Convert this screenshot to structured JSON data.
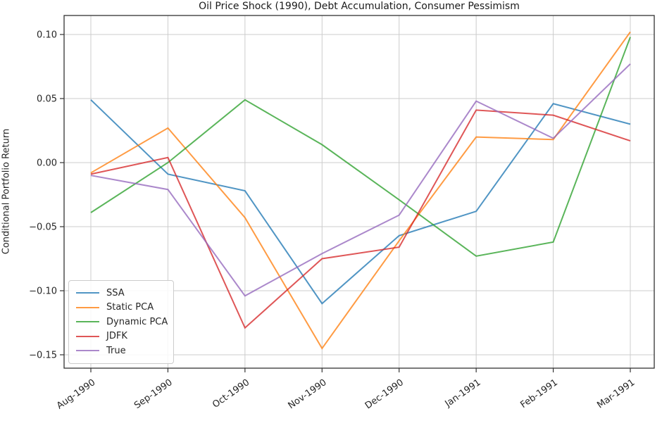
{
  "chart_data": {
    "type": "line",
    "title": "Oil Price Shock (1990), Debt Accumulation, Consumer Pessimism",
    "xlabel": "",
    "ylabel": "Conditional Portfolio Return",
    "categories": [
      "Aug-1990",
      "Sep-1990",
      "Oct-1990",
      "Nov-1990",
      "Dec-1990",
      "Jan-1991",
      "Feb-1991",
      "Mar-1991"
    ],
    "series": [
      {
        "name": "SSA",
        "color": "#1f77b4",
        "values": [
          0.049,
          -0.009,
          -0.022,
          -0.11,
          -0.057,
          -0.038,
          0.046,
          0.03
        ]
      },
      {
        "name": "Static PCA",
        "color": "#ff7f0e",
        "values": [
          -0.008,
          0.027,
          -0.043,
          -0.145,
          -0.061,
          0.02,
          0.018,
          0.102
        ]
      },
      {
        "name": "Dynamic PCA",
        "color": "#2ca02c",
        "values": [
          -0.039,
          0.0,
          0.049,
          0.014,
          -0.029,
          -0.073,
          -0.062,
          0.098
        ]
      },
      {
        "name": "JDFK",
        "color": "#d62728",
        "values": [
          -0.009,
          0.004,
          -0.129,
          -0.075,
          -0.066,
          0.041,
          0.037,
          0.017
        ]
      },
      {
        "name": "True",
        "color": "#9467bd",
        "values": [
          -0.01,
          -0.021,
          -0.104,
          -0.071,
          -0.041,
          0.048,
          0.019,
          0.077
        ]
      }
    ],
    "yticks": [
      {
        "value": 0.1,
        "label": "0.10"
      },
      {
        "value": 0.05,
        "label": "0.05"
      },
      {
        "value": 0.0,
        "label": "0.00"
      },
      {
        "value": -0.05,
        "label": "−0.05"
      },
      {
        "value": -0.1,
        "label": "−0.10"
      },
      {
        "value": -0.15,
        "label": "−0.15"
      }
    ],
    "ylim": [
      -0.16,
      0.115
    ],
    "grid": true,
    "legend_position": "lower left",
    "line_opacity": 0.78,
    "grid_color": "#cccccc",
    "spine_color": "#333333",
    "text_color": "#262626"
  }
}
